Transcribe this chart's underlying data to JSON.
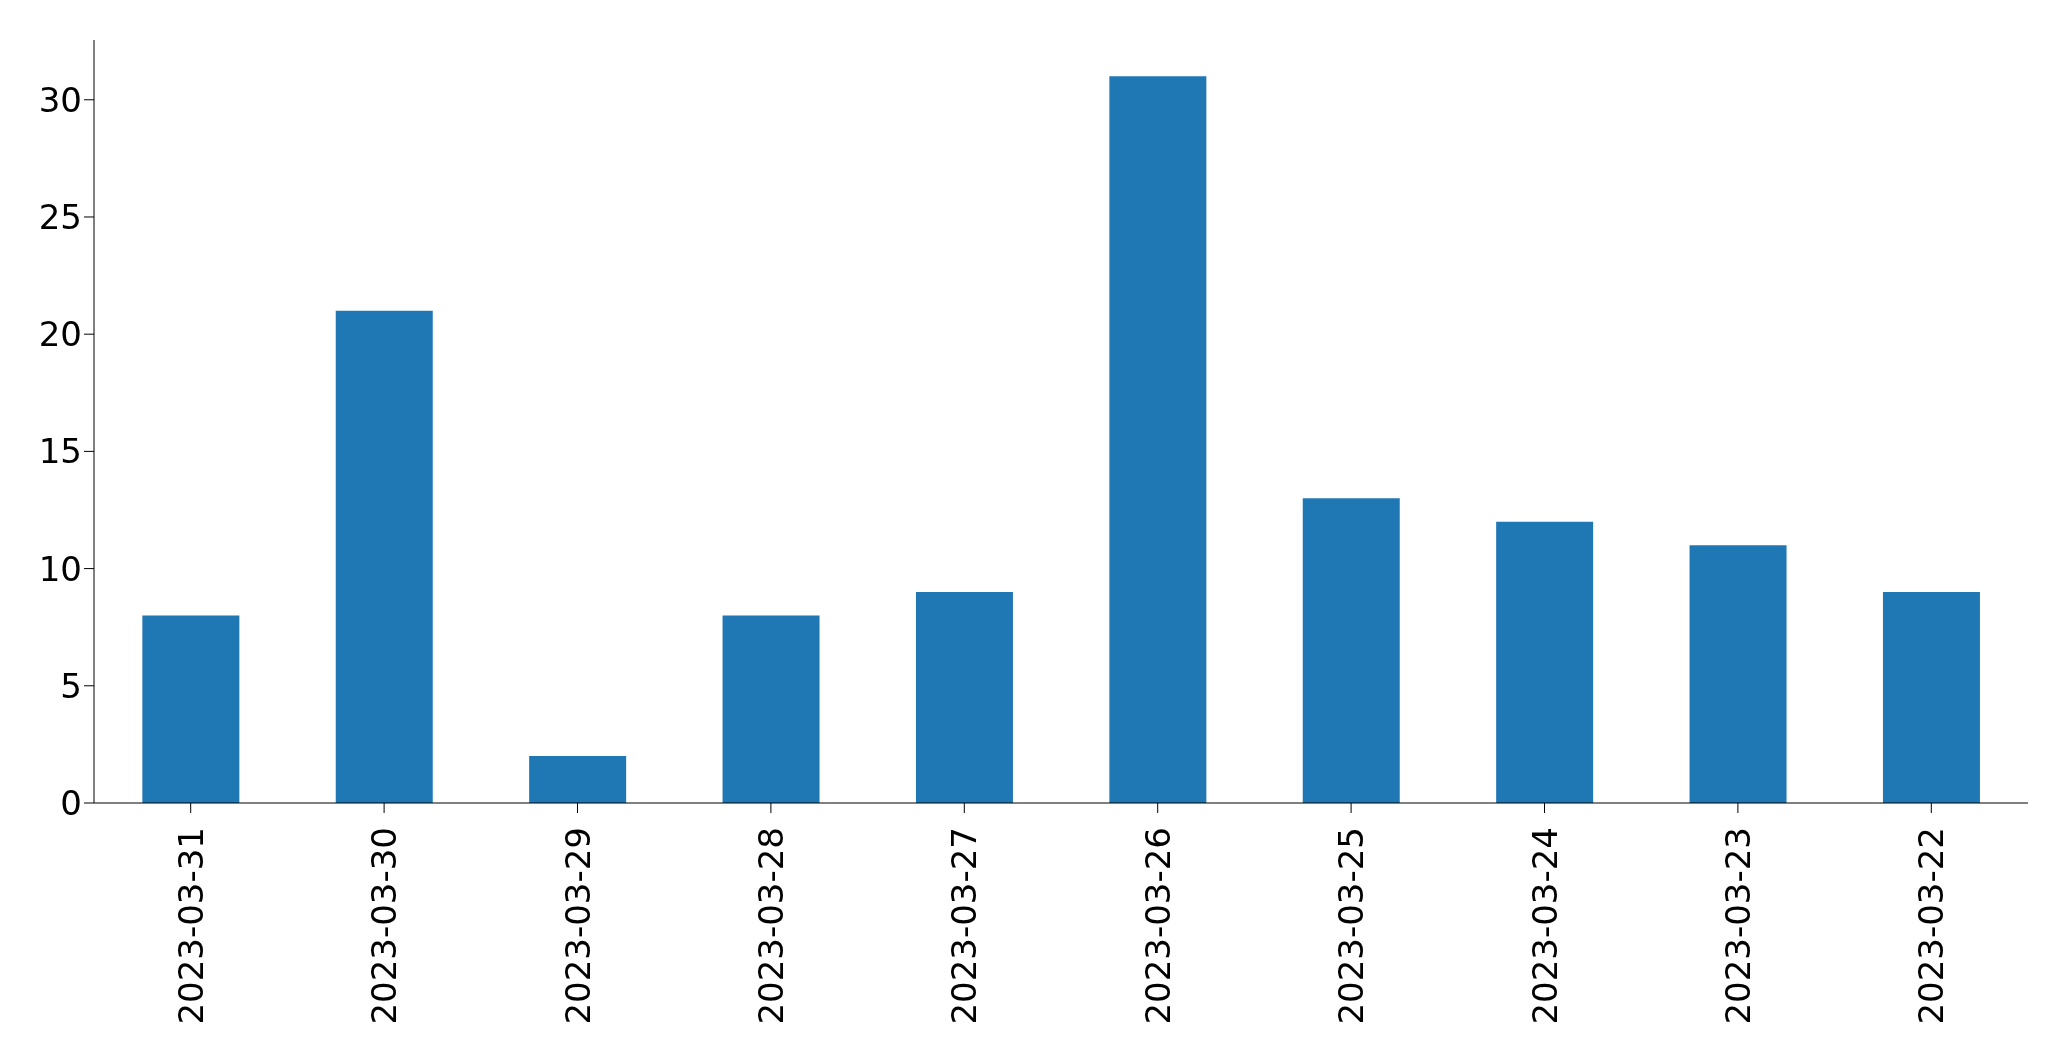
{
  "chart_data": {
    "type": "bar",
    "categories": [
      "2023-03-31",
      "2023-03-30",
      "2023-03-29",
      "2023-03-28",
      "2023-03-27",
      "2023-03-26",
      "2023-03-25",
      "2023-03-24",
      "2023-03-23",
      "2023-03-22"
    ],
    "values": [
      8,
      21,
      2,
      8,
      9,
      31,
      13,
      12,
      11,
      9
    ],
    "color": "#1f77b4",
    "ylim": [
      0,
      32.55
    ],
    "yticks": [
      0,
      5,
      10,
      15,
      20,
      25,
      30
    ]
  }
}
